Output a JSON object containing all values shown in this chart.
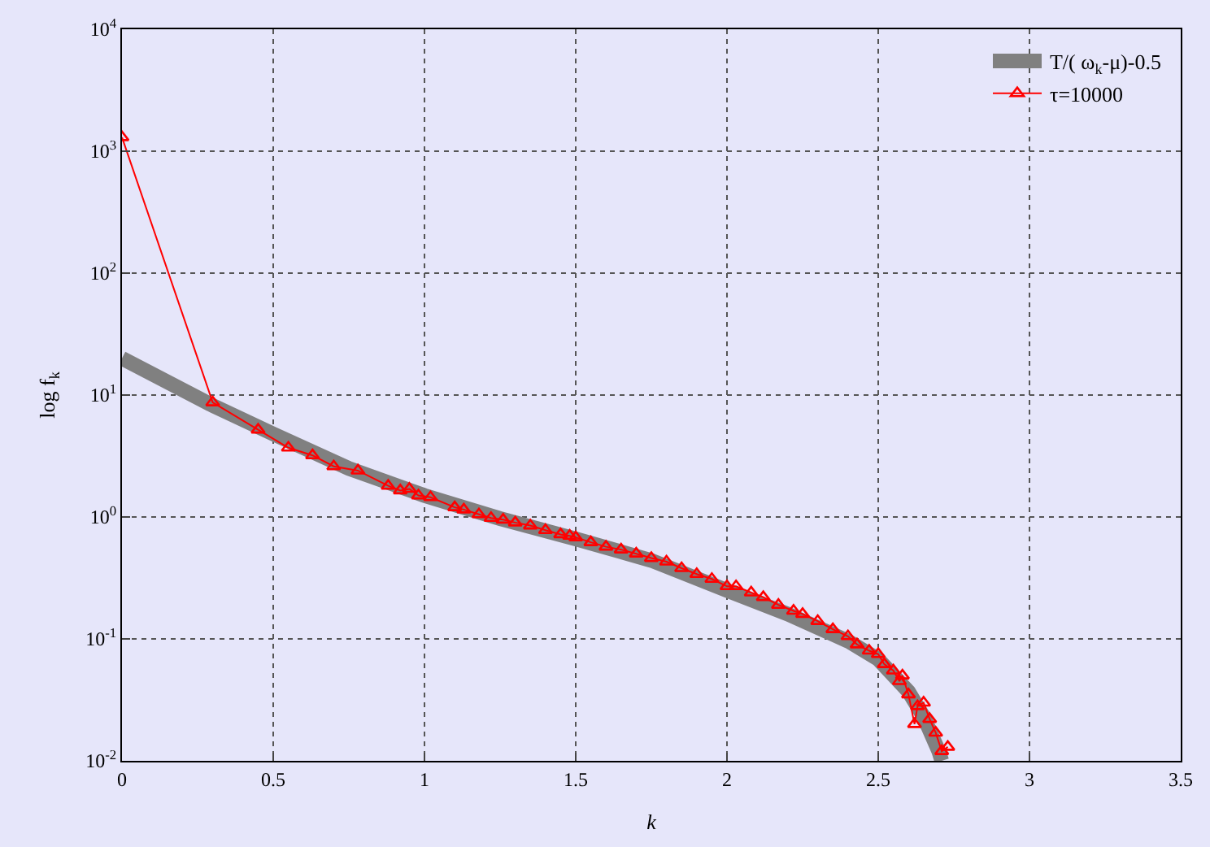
{
  "chart_data": {
    "type": "line",
    "xlabel": "k",
    "ylabel": "log f$_{k}$",
    "xlim": [
      0,
      3.5
    ],
    "xticks": [
      0,
      0.5,
      1,
      1.5,
      2,
      2.5,
      3,
      3.5
    ],
    "ylim": [
      0.01,
      10000
    ],
    "yticks": [
      {
        "value": 0.01,
        "label": "10$^{-2}$"
      },
      {
        "value": 0.1,
        "label": "10$^{-1}$"
      },
      {
        "value": 1,
        "label": "10$^{0}$"
      },
      {
        "value": 10,
        "label": "10$^{1}$"
      },
      {
        "value": 100,
        "label": "10$^{2}$"
      },
      {
        "value": 1000,
        "label": "10$^{3}$"
      },
      {
        "value": 10000,
        "label": "10$^{4}$"
      }
    ],
    "log": "y",
    "grid": true,
    "legend": "top right",
    "series": [
      {
        "name": "T/( ω$_{k}$-μ)-0.5",
        "color": "#808080",
        "marker": "none",
        "x": [
          0,
          0.3,
          0.5,
          0.75,
          1.0,
          1.25,
          1.5,
          1.75,
          2.0,
          2.2,
          2.4,
          2.5,
          2.6,
          2.65,
          2.7,
          2.71
        ],
        "values": [
          20,
          8.2,
          4.8,
          2.5,
          1.5,
          0.97,
          0.66,
          0.44,
          0.25,
          0.16,
          0.096,
          0.068,
          0.037,
          0.023,
          0.012,
          0.01
        ]
      },
      {
        "name": "τ=10000",
        "color": "#ff0000",
        "marker": "triangle",
        "x": [
          0,
          0.3,
          0.45,
          0.55,
          0.63,
          0.7,
          0.78,
          0.88,
          0.92,
          0.95,
          0.98,
          1.02,
          1.1,
          1.13,
          1.18,
          1.22,
          1.26,
          1.3,
          1.35,
          1.4,
          1.45,
          1.48,
          1.5,
          1.55,
          1.6,
          1.65,
          1.7,
          1.75,
          1.8,
          1.85,
          1.9,
          1.95,
          2.0,
          2.03,
          2.08,
          2.12,
          2.17,
          2.22,
          2.25,
          2.3,
          2.35,
          2.4,
          2.43,
          2.47,
          2.5,
          2.52,
          2.55,
          2.57,
          2.58,
          2.6,
          2.62,
          2.63,
          2.65,
          2.67,
          2.69,
          2.71,
          2.73
        ],
        "values": [
          1300,
          8.7,
          5.2,
          3.7,
          3.2,
          2.6,
          2.4,
          1.8,
          1.65,
          1.7,
          1.5,
          1.45,
          1.2,
          1.15,
          1.05,
          0.98,
          0.95,
          0.9,
          0.85,
          0.78,
          0.72,
          0.7,
          0.68,
          0.62,
          0.57,
          0.54,
          0.5,
          0.46,
          0.43,
          0.38,
          0.34,
          0.31,
          0.27,
          0.27,
          0.24,
          0.22,
          0.19,
          0.17,
          0.16,
          0.14,
          0.12,
          0.105,
          0.09,
          0.08,
          0.075,
          0.062,
          0.055,
          0.045,
          0.05,
          0.035,
          0.02,
          0.028,
          0.03,
          0.022,
          0.017,
          0.012,
          0.013
        ]
      }
    ]
  }
}
